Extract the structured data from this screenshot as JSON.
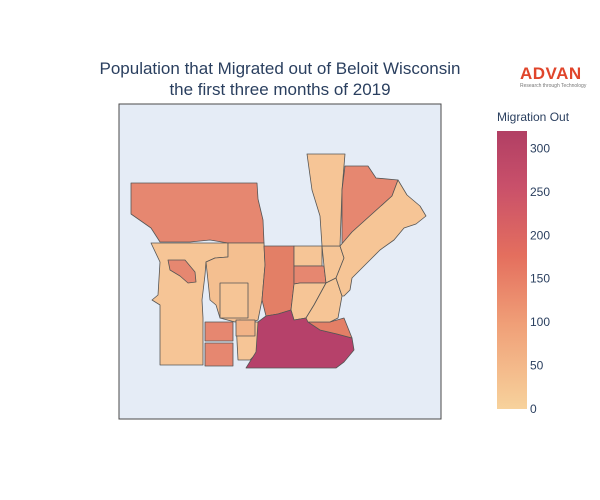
{
  "title_line1": "Population that Migrated out of Beloit Wisconsin",
  "title_line2": "the first three months of 2019",
  "logo": {
    "word": "ADVAN",
    "tagline": "Research through Technology",
    "color": "#e0452b"
  },
  "colorbar": {
    "title": "Migration Out",
    "ticks": [
      0,
      50,
      100,
      150,
      200,
      250,
      300
    ],
    "range": [
      0,
      320
    ],
    "colors": [
      "#f7d29c",
      "#f0a078",
      "#e46f5e",
      "#c9506a",
      "#b13f64"
    ]
  },
  "map": {
    "background": "#e5ecf6",
    "border_color": "#4a4a4a"
  }
}
